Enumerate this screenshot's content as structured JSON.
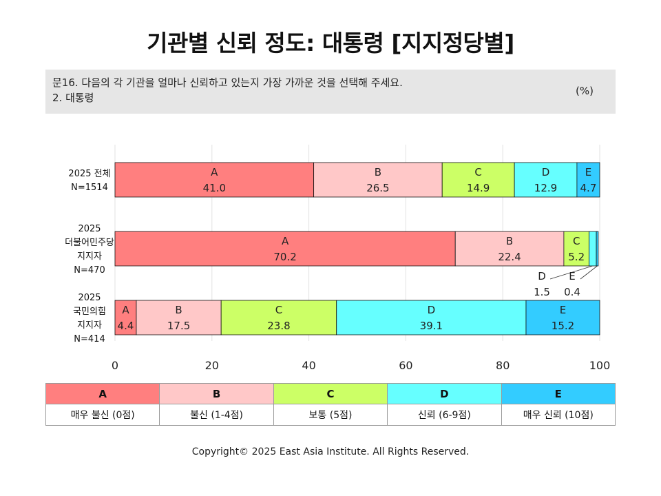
{
  "title": "기관별 신뢰 정도: 대통령 [지지정당별]",
  "question": {
    "line1": "문16. 다음의 각 기관을 얼마나 신뢰하고 있는지 가장 가까운 것을 선택해 주세요.",
    "line2": "2. 대통령",
    "unit": "(%)"
  },
  "chart_data": {
    "type": "bar",
    "orientation": "horizontal",
    "stacked": true,
    "categories": [
      [
        "2025 전체",
        "N=1514"
      ],
      [
        "2025",
        "더불어민주당",
        "지지자",
        "N=470"
      ],
      [
        "2025",
        "국민의힘",
        "지지자",
        "N=414"
      ]
    ],
    "series": [
      {
        "name": "A",
        "color": "#ff7f7f",
        "values": [
          41.0,
          70.2,
          4.4
        ],
        "labels": [
          "41.0",
          "70.2",
          "4.4"
        ]
      },
      {
        "name": "B",
        "color": "#ffc8c8",
        "values": [
          26.5,
          22.4,
          17.5
        ],
        "labels": [
          "26.5",
          "22.4",
          "17.5"
        ]
      },
      {
        "name": "C",
        "color": "#ccff66",
        "values": [
          14.9,
          5.2,
          23.8
        ],
        "labels": [
          "14.9",
          "5.2",
          "23.8"
        ]
      },
      {
        "name": "D",
        "color": "#66ffff",
        "values": [
          12.9,
          1.5,
          39.1
        ],
        "labels": [
          "12.9",
          "1.5",
          "39.1"
        ]
      },
      {
        "name": "E",
        "color": "#33ccff",
        "values": [
          4.7,
          0.4,
          15.2
        ],
        "labels": [
          "4.7",
          "0.4",
          "15.2"
        ]
      }
    ],
    "xlim": [
      0,
      100
    ],
    "xticks": [
      0,
      20,
      40,
      60,
      80,
      100
    ],
    "grid": true,
    "callouts": [
      {
        "row": 1,
        "series": 3,
        "name": "D",
        "label": "1.5"
      },
      {
        "row": 1,
        "series": 4,
        "name": "E",
        "label": "0.4"
      }
    ]
  },
  "legend": {
    "codes": [
      "A",
      "B",
      "C",
      "D",
      "E"
    ],
    "descriptions": [
      "매우 불신 (0점)",
      "불신 (1-4점)",
      "보통 (5점)",
      "신뢰 (6-9점)",
      "매우 신뢰 (10점)"
    ],
    "colors": [
      "#ff7f7f",
      "#ffc8c8",
      "#ccff66",
      "#66ffff",
      "#33ccff"
    ]
  },
  "copyright": "Copyright© 2025 East Asia Institute. All Rights Reserved."
}
